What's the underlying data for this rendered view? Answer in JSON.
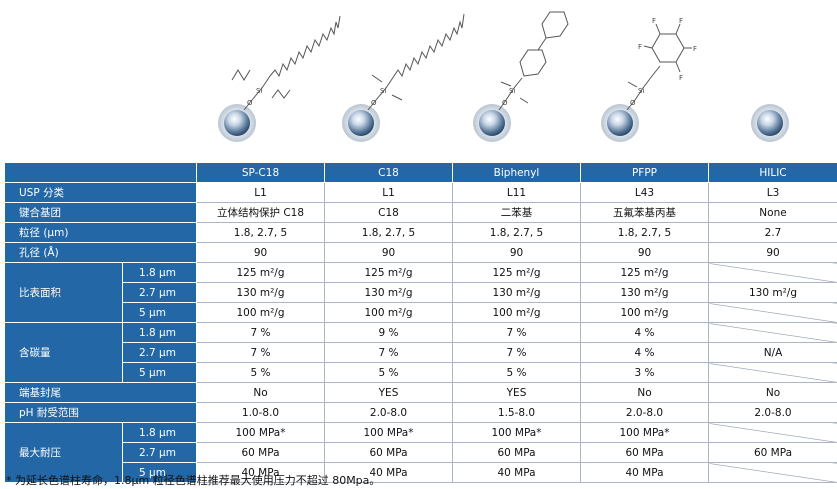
{
  "columns": [
    "SP-C18",
    "C18",
    "Biphenyl",
    "PFPP",
    "HILIC"
  ],
  "rows": {
    "usp": {
      "label": "USP 分类",
      "values": [
        "L1",
        "L1",
        "L11",
        "L43",
        "L3"
      ]
    },
    "bonded": {
      "label": "键合基团",
      "values": [
        "立体结构保护 C18",
        "C18",
        "二苯基",
        "五氟苯基丙基",
        "None"
      ]
    },
    "particle": {
      "label": "粒径 (µm)",
      "values": [
        "1.8, 2.7, 5",
        "1.8, 2.7, 5",
        "1.8, 2.7, 5",
        "1.8, 2.7, 5",
        "2.7"
      ]
    },
    "pore": {
      "label": "孔径 (Å)",
      "values": [
        "90",
        "90",
        "90",
        "90",
        "90"
      ]
    },
    "surface": {
      "label": "比表面积",
      "sub": [
        "1.8 µm",
        "2.7 µm",
        "5 µm"
      ],
      "r0": [
        "125 m²/g",
        "125 m²/g",
        "125 m²/g",
        "125 m²/g"
      ],
      "r1": [
        "130 m²/g",
        "130 m²/g",
        "130 m²/g",
        "130 m²/g",
        "130 m²/g"
      ],
      "r2": [
        "100 m²/g",
        "100 m²/g",
        "100 m²/g",
        "100 m²/g"
      ]
    },
    "carbon": {
      "label": "含碳量",
      "sub": [
        "1.8 µm",
        "2.7 µm",
        "5 µm"
      ],
      "r0": [
        "7 %",
        "9 %",
        "7 %",
        "4 %"
      ],
      "r1": [
        "7 %",
        "7 %",
        "7 %",
        "4 %",
        "N/A"
      ],
      "r2": [
        "5 %",
        "5 %",
        "5 %",
        "3 %"
      ]
    },
    "endcap": {
      "label": "端基封尾",
      "values": [
        "No",
        "YES",
        "YES",
        "No",
        "No"
      ]
    },
    "ph": {
      "label": "pH 耐受范围",
      "values": [
        "1.0-8.0",
        "2.0-8.0",
        "1.5-8.0",
        "2.0-8.0",
        "2.0-8.0"
      ]
    },
    "pressure": {
      "label": "最大耐压",
      "sub": [
        "1.8 µm",
        "2.7 µm",
        "5 µm"
      ],
      "r0": [
        "100 MPa*",
        "100 MPa*",
        "100 MPa*",
        "100 MPa*"
      ],
      "r1": [
        "60 MPa",
        "60 MPa",
        "60 MPa",
        "60 MPa",
        "60 MPa"
      ],
      "r2": [
        "40 MPa",
        "40 MPa",
        "40 MPa",
        "40 MPa"
      ]
    }
  },
  "structures": {
    "si": "Si",
    "o": "O",
    "f": "F"
  },
  "footnote": "* 为延长色谱柱寿命，1.8µm 粒径色谱柱推荐最大使用压力不超过 80Mpa。"
}
